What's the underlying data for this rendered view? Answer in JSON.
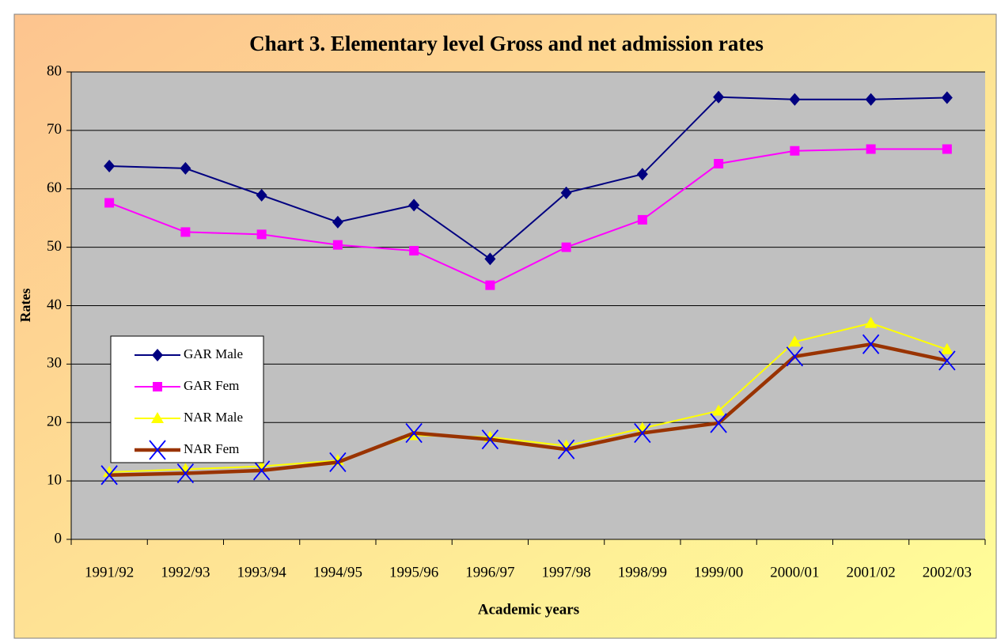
{
  "chart_data": {
    "type": "line",
    "title": "Chart 3. Elementary level Gross  and net admission rates",
    "y_label": "Rates",
    "x_label": "Academic years",
    "categories": [
      "1991/92",
      "1992/93",
      "1993/94",
      "1994/95",
      "1995/96",
      "1996/97",
      "1997/98",
      "1998/99",
      "1999/00",
      "2000/01",
      "2001/02",
      "2002/03"
    ],
    "series": [
      {
        "name": "GAR Male",
        "color": "#000080",
        "marker": "diamond",
        "values": [
          63.9,
          63.5,
          58.9,
          54.3,
          57.2,
          48.0,
          59.3,
          62.5,
          75.7,
          75.3,
          75.3,
          75.6
        ]
      },
      {
        "name": "GAR Fem",
        "color": "#ff00ff",
        "marker": "square",
        "values": [
          57.6,
          52.6,
          52.2,
          50.4,
          49.4,
          43.5,
          50.0,
          54.7,
          64.3,
          66.5,
          66.8,
          66.8
        ]
      },
      {
        "name": "NAR Male",
        "color": "#ffff00",
        "marker": "triangle",
        "values": [
          11.5,
          12.0,
          12.5,
          13.5,
          17.8,
          17.5,
          16.0,
          19.0,
          22.0,
          33.8,
          37.0,
          32.5
        ]
      },
      {
        "name": "NAR Fem",
        "color": "#993300",
        "marker": "x",
        "values": [
          11.0,
          11.3,
          11.8,
          13.2,
          18.2,
          17.1,
          15.4,
          18.2,
          19.9,
          31.3,
          33.4,
          30.6
        ]
      }
    ],
    "ylim": [
      0,
      80
    ],
    "yticks": [
      0,
      10,
      20,
      30,
      40,
      50,
      60,
      70,
      80
    ],
    "grid": true,
    "legend": "left"
  }
}
